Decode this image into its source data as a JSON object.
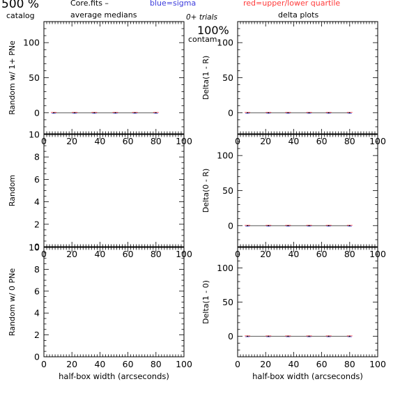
{
  "header": {
    "big_label": "500 %",
    "catalog_label": "catalog",
    "file_label": "Core.fits  –",
    "blue_label": "blue=sigma",
    "red_label": "red=upper/lower quartile",
    "avg_label": "average medians",
    "trials_label": "0+ trials",
    "pct_label": "100%",
    "contam_label": "contam.",
    "delta_label": "delta plots"
  },
  "colors": {
    "blue": "#3b3bdc",
    "red": "#ff3a3a",
    "axis": "#000000",
    "median_line": "#555555"
  },
  "chart_data": [
    {
      "id": "random-1plus",
      "type": "line",
      "ylabel": "Random w/ 1+ PNe",
      "xlabel": "",
      "xlim": [
        0,
        100
      ],
      "ylim": [
        -30,
        130
      ],
      "xticks": [
        0,
        20,
        40,
        60,
        80,
        100
      ],
      "yticks": [
        0,
        50,
        100
      ],
      "x": [
        7,
        22,
        36,
        51,
        65,
        80
      ],
      "series": [
        {
          "values": [
            0,
            0,
            0,
            0,
            0,
            0
          ]
        }
      ]
    },
    {
      "id": "delta-1-r",
      "type": "line",
      "ylabel": "Delta(1 - R)",
      "xlabel": "",
      "xlim": [
        0,
        100
      ],
      "ylim": [
        -30,
        130
      ],
      "xticks": [
        0,
        20,
        40,
        60,
        80,
        100
      ],
      "yticks": [
        0,
        50,
        100
      ],
      "x": [
        7,
        22,
        36,
        51,
        65,
        80
      ],
      "series": [
        {
          "values": [
            0,
            0,
            0,
            0,
            0,
            0
          ]
        }
      ]
    },
    {
      "id": "random",
      "type": "line",
      "ylabel": "Random",
      "xlabel": "",
      "xlim": [
        0,
        100
      ],
      "ylim": [
        0,
        10
      ],
      "xticks": [
        0,
        20,
        40,
        60,
        80,
        100
      ],
      "yticks": [
        0,
        2,
        4,
        6,
        8,
        10
      ],
      "x": [],
      "series": []
    },
    {
      "id": "delta-0-r",
      "type": "line",
      "ylabel": "Delta(0 - R)",
      "xlabel": "",
      "xlim": [
        0,
        100
      ],
      "ylim": [
        -30,
        130
      ],
      "xticks": [
        0,
        20,
        40,
        60,
        80,
        100
      ],
      "yticks": [
        0,
        50,
        100
      ],
      "x": [
        7,
        22,
        36,
        51,
        65,
        80
      ],
      "series": [
        {
          "values": [
            0,
            0,
            0,
            0,
            0,
            0
          ]
        }
      ]
    },
    {
      "id": "random-0",
      "type": "line",
      "ylabel": "Random w/ 0 PNe",
      "xlabel": "half-box width (arcseconds)",
      "xlim": [
        0,
        100
      ],
      "ylim": [
        0,
        10
      ],
      "xticks": [
        0,
        20,
        40,
        60,
        80,
        100
      ],
      "yticks": [
        0,
        2,
        4,
        6,
        8,
        10
      ],
      "x": [],
      "series": []
    },
    {
      "id": "delta-1-0",
      "type": "line",
      "ylabel": "Delta(1 - 0)",
      "xlabel": "half-box width (arcseconds)",
      "xlim": [
        0,
        100
      ],
      "ylim": [
        -30,
        130
      ],
      "xticks": [
        0,
        20,
        40,
        60,
        80,
        100
      ],
      "yticks": [
        0,
        50,
        100
      ],
      "x": [
        7,
        22,
        36,
        51,
        65,
        80
      ],
      "series": [
        {
          "values": [
            0,
            0,
            0,
            0,
            0,
            0
          ]
        }
      ]
    }
  ]
}
